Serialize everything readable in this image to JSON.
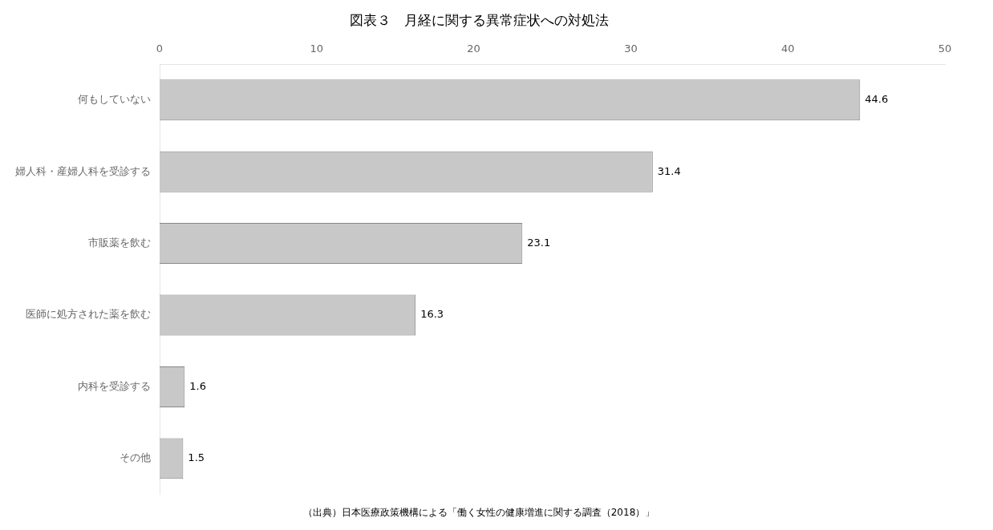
{
  "chart_data": {
    "type": "bar",
    "orientation": "horizontal",
    "title": "図表３　月経に関する異常症状への対処法",
    "categories": [
      "その他",
      "内科を受診する",
      "医師に処方された薬を飲む",
      "市販薬を飲む",
      "婦人科・産婦人科を受診する",
      "何もしていない"
    ],
    "values": [
      1.5,
      1.6,
      16.3,
      23.1,
      31.4,
      44.6
    ],
    "color": "#c8c8c8",
    "xlim": [
      0,
      50
    ],
    "xticks": [
      0,
      10,
      20,
      30,
      40,
      50
    ],
    "grid": false,
    "data_labels": true,
    "footnote": "（出典）日本医療政策機構による「働く女性の健康増進に関する調査（2018）」"
  }
}
